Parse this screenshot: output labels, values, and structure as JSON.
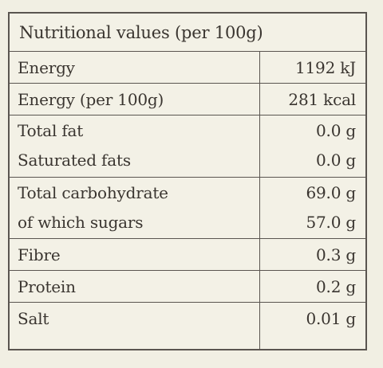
{
  "table": {
    "title": "Nutritional values (per 100g)",
    "rows": [
      {
        "names": [
          "Energy"
        ],
        "values": [
          "1192 kJ"
        ]
      },
      {
        "names": [
          "Energy (per 100g)"
        ],
        "values": [
          "281 kcal"
        ]
      },
      {
        "names": [
          "Total fat",
          "Saturated fats"
        ],
        "values": [
          "0.0 g",
          "0.0 g"
        ]
      },
      {
        "names": [
          "Total carbohydrate",
          "of which sugars"
        ],
        "values": [
          "69.0 g",
          "57.0 g"
        ]
      },
      {
        "names": [
          "Fibre"
        ],
        "values": [
          "0.3 g"
        ]
      },
      {
        "names": [
          "Protein"
        ],
        "values": [
          "0.2 g"
        ]
      },
      {
        "names": [
          "Salt"
        ],
        "values": [
          "0.01 g"
        ]
      }
    ]
  }
}
